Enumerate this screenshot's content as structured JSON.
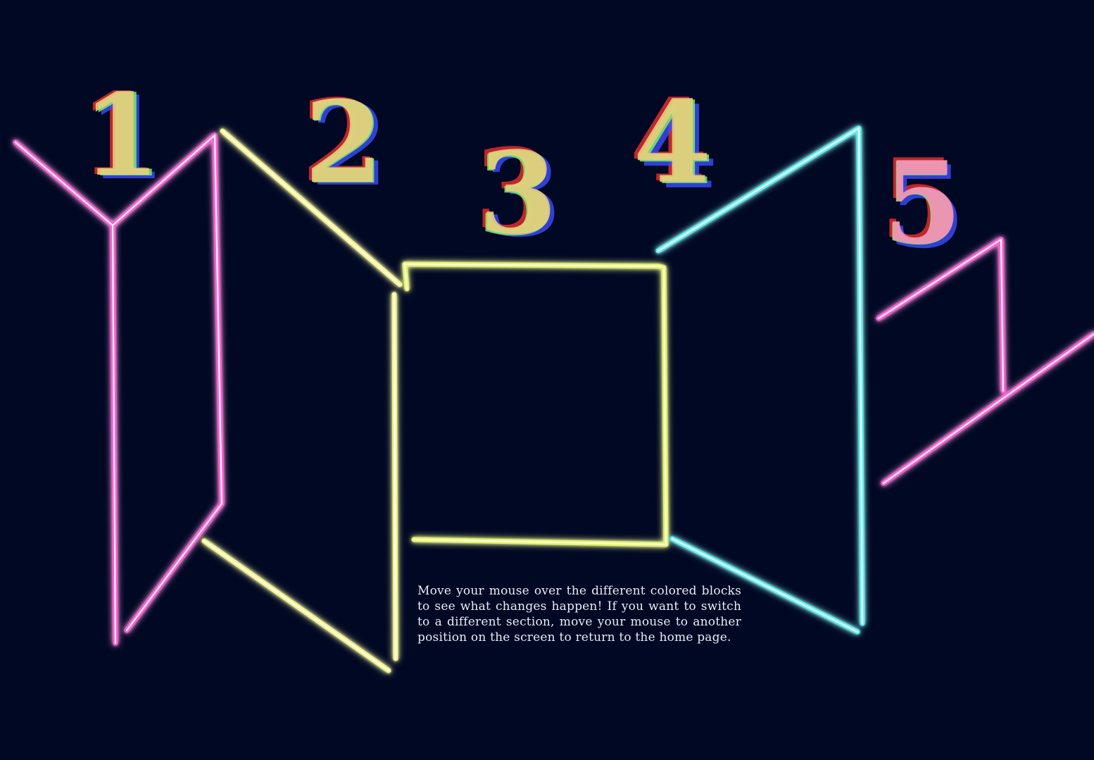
{
  "blocks": [
    {
      "id": "block-1",
      "numeral": "1",
      "color": "#ff5fd6"
    },
    {
      "id": "block-2",
      "numeral": "2",
      "color": "#f4f58a"
    },
    {
      "id": "block-3",
      "numeral": "3",
      "color": "#e4f46a"
    },
    {
      "id": "block-4",
      "numeral": "4",
      "color": "#5ef0f2"
    },
    {
      "id": "block-5",
      "numeral": "5",
      "color": "#ff5fd6"
    }
  ],
  "numeral_palette": {
    "red": "#ff3030",
    "blue": "#3d4dff",
    "green": "#7cf06a",
    "fill": "#e7cf7f",
    "pink": "#f78fb8"
  },
  "background_color": "#000823",
  "instructions": "Move your mouse over the different colored blocks to see what changes happen! If you want to switch to a different section, move your mouse to another position on the screen to return to the home page."
}
